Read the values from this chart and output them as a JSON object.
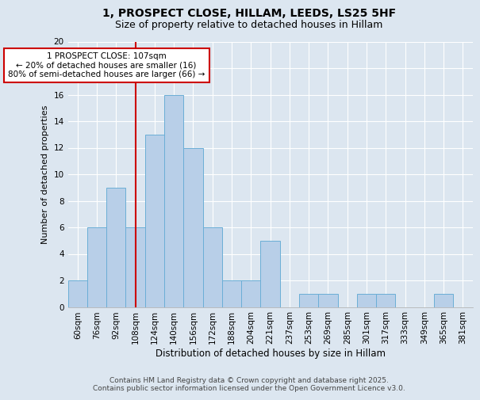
{
  "title1": "1, PROSPECT CLOSE, HILLAM, LEEDS, LS25 5HF",
  "title2": "Size of property relative to detached houses in Hillam",
  "xlabel": "Distribution of detached houses by size in Hillam",
  "ylabel": "Number of detached properties",
  "bar_labels": [
    "60sqm",
    "76sqm",
    "92sqm",
    "108sqm",
    "124sqm",
    "140sqm",
    "156sqm",
    "172sqm",
    "188sqm",
    "204sqm",
    "221sqm",
    "237sqm",
    "253sqm",
    "269sqm",
    "285sqm",
    "301sqm",
    "317sqm",
    "333sqm",
    "349sqm",
    "365sqm",
    "381sqm"
  ],
  "bar_values": [
    2,
    6,
    9,
    6,
    13,
    16,
    12,
    6,
    2,
    2,
    5,
    0,
    1,
    1,
    0,
    1,
    1,
    0,
    0,
    1,
    0
  ],
  "bar_color": "#b8cfe8",
  "bar_edge_color": "#6baed6",
  "vline_x_index": 3,
  "vline_color": "#cc0000",
  "annotation_text": "1 PROSPECT CLOSE: 107sqm\n← 20% of detached houses are smaller (16)\n80% of semi-detached houses are larger (66) →",
  "annotation_box_color": "#ffffff",
  "annotation_box_edge": "#cc0000",
  "ylim": [
    0,
    20
  ],
  "yticks": [
    0,
    2,
    4,
    6,
    8,
    10,
    12,
    14,
    16,
    18,
    20
  ],
  "background_color": "#dce6f0",
  "grid_color": "#ffffff",
  "footer_text": "Contains HM Land Registry data © Crown copyright and database right 2025.\nContains public sector information licensed under the Open Government Licence v3.0.",
  "title1_fontsize": 10,
  "title2_fontsize": 9,
  "xlabel_fontsize": 8.5,
  "ylabel_fontsize": 8,
  "tick_fontsize": 7.5,
  "annotation_fontsize": 7.5,
  "footer_fontsize": 6.5
}
